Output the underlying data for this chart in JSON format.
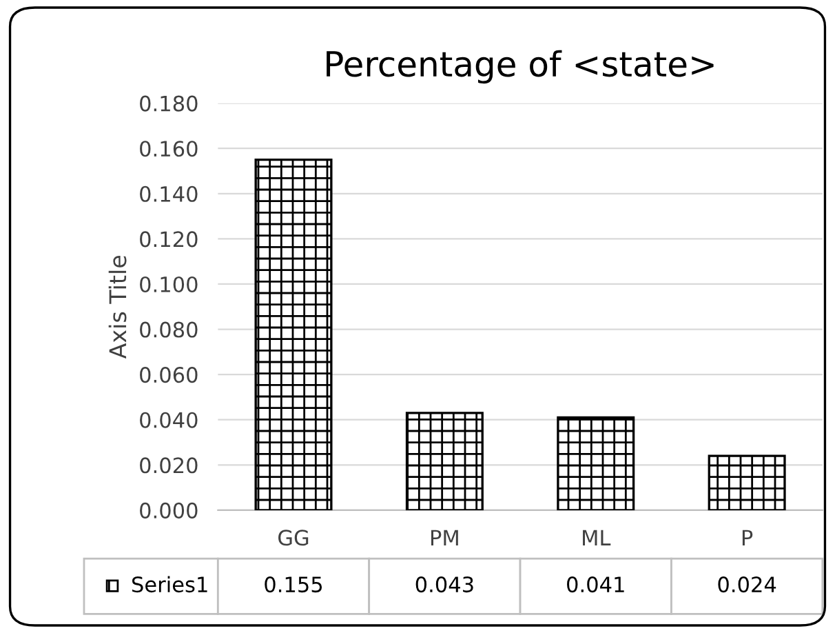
{
  "chart_data": {
    "type": "bar",
    "title": "Percentage of <state>",
    "ylabel": "Axis Title",
    "categories": [
      "GG",
      "PM",
      "ML",
      "P"
    ],
    "series": [
      {
        "name": "Series1",
        "color": "#000000",
        "values": [
          0.155,
          0.043,
          0.041,
          0.024
        ]
      }
    ],
    "ylim": [
      0,
      0.18
    ],
    "yticks": [
      {
        "value": 0,
        "label": "0.000"
      },
      {
        "value": 0.02,
        "label": "0.020"
      },
      {
        "value": 0.04,
        "label": "0.040"
      },
      {
        "value": 0.06,
        "label": "0.060"
      },
      {
        "value": 0.08,
        "label": "0.080"
      },
      {
        "value": 0.1,
        "label": "0.100"
      },
      {
        "value": 0.12,
        "label": "0.120"
      },
      {
        "value": 0.14,
        "label": "0.140"
      },
      {
        "value": 0.16,
        "label": "0.160"
      },
      {
        "value": 0.18,
        "label": "0.180"
      }
    ],
    "grid": "y",
    "legend": "bottom",
    "data_labels": true
  }
}
